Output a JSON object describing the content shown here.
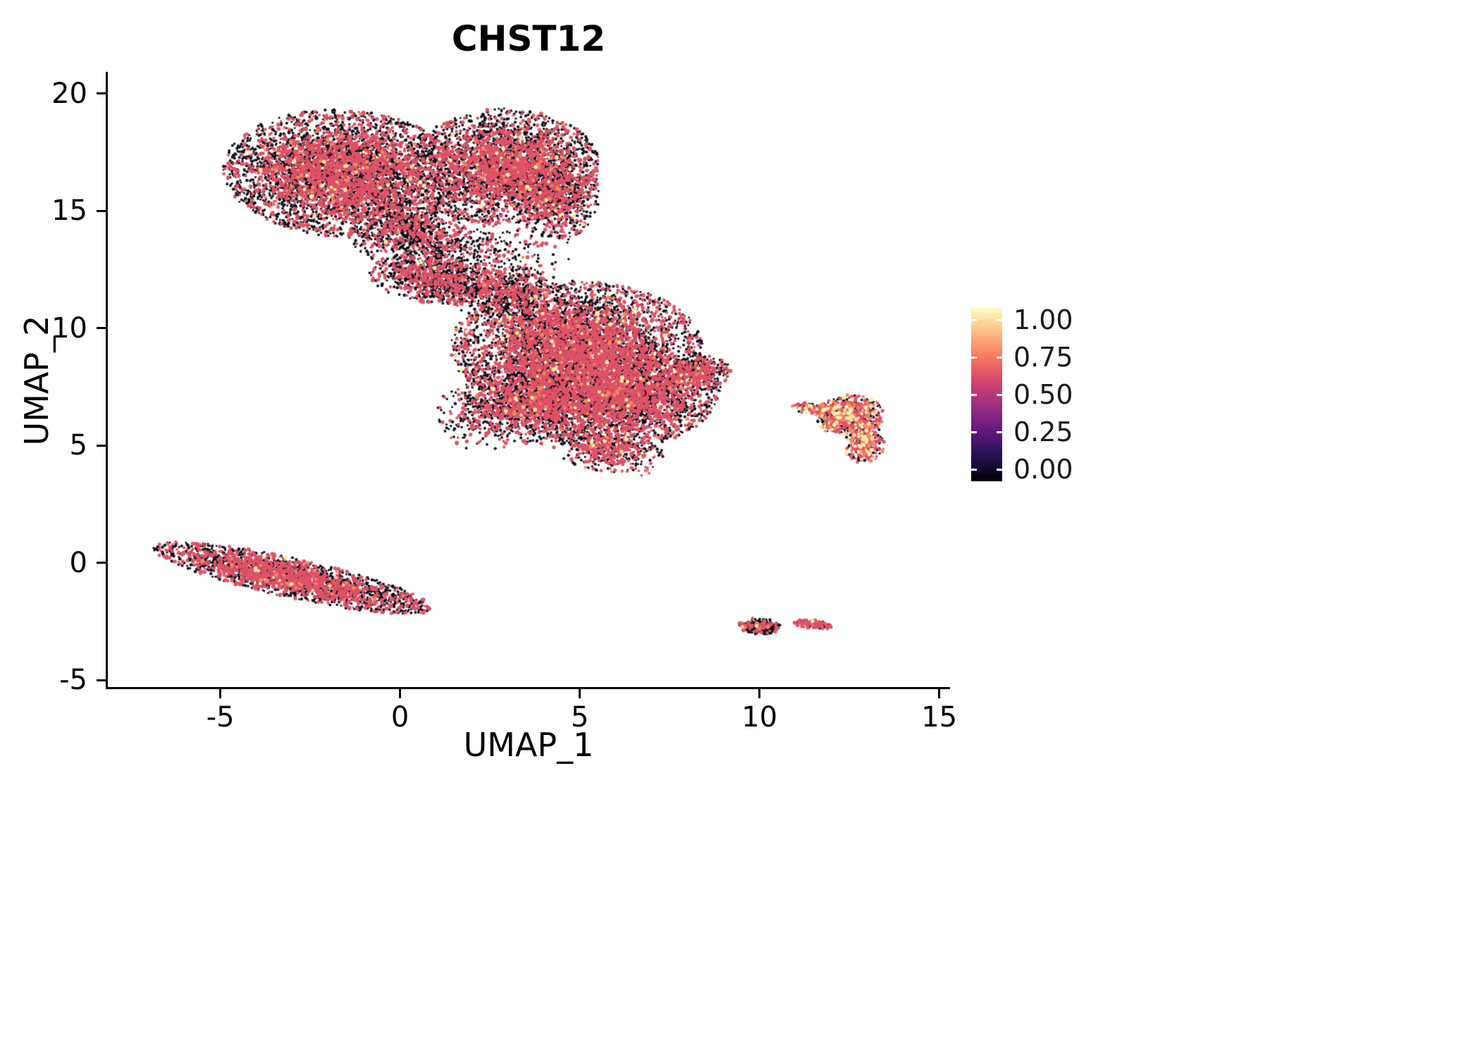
{
  "title": "CHST12",
  "axes": {
    "x": {
      "label": "UMAP_1",
      "ticks": [
        -5,
        0,
        5,
        10,
        15
      ]
    },
    "y": {
      "label": "UMAP_2",
      "ticks": [
        -5,
        0,
        5,
        10,
        15,
        20
      ]
    }
  },
  "legend": {
    "tick_labels": [
      "1.00",
      "0.75",
      "0.50",
      "0.25",
      "0.00"
    ],
    "colormap": "magma",
    "gradient_stops": [
      "#000004",
      "#231151",
      "#5f187f",
      "#982d80",
      "#d3436e",
      "#f8765c",
      "#febb81",
      "#fcfdbf"
    ]
  },
  "chart_data": {
    "type": "scatter",
    "title": "CHST12",
    "xlabel": "UMAP_1",
    "ylabel": "UMAP_2",
    "xlim": [
      -8.15,
      15.3
    ],
    "ylim": [
      -5.3,
      20.9
    ],
    "color_scale": {
      "min": 0.0,
      "max": 1.0,
      "palette": "magma",
      "tick_values": [
        1.0,
        0.75,
        0.5,
        0.25,
        0.0
      ]
    },
    "note": "UMAP feature plot of CHST12 expression; dense point cloud represented by cluster distributions. Each cluster: center (cx,cy) in UMAP units, spread (rx,ry), rotation in degrees, n points, color mix of expression levels (black=0, rose~0.6, orange~0.8, yellow~1.0).",
    "point_colors": {
      "black": "#0d0b16",
      "rose": "#df5266",
      "orange": "#f5875f",
      "yellow": "#fbe9a8"
    },
    "point_sizes": {
      "black": [
        1.4,
        2.3
      ],
      "rose": [
        1.7,
        2.9
      ],
      "orange": [
        1.8,
        2.9
      ],
      "yellow": [
        1.9,
        3.0
      ]
    },
    "draw_order": [
      "black",
      "rose",
      "orange",
      "yellow"
    ],
    "mixes": {
      "standard": {
        "black": 0.51,
        "rose": 0.465,
        "orange": 0.015,
        "yellow": 0.01
      },
      "central": {
        "black": 0.47,
        "rose": 0.505,
        "orange": 0.015,
        "yellow": 0.01
      },
      "sparse_dark": {
        "black": 0.63,
        "rose": 0.36,
        "orange": 0.006,
        "yellow": 0.004
      },
      "streak": {
        "black": 0.5,
        "rose": 0.485,
        "orange": 0.01,
        "yellow": 0.005
      },
      "island": {
        "black": 0.36,
        "rose": 0.42,
        "orange": 0.13,
        "yellow": 0.09
      },
      "dark_small": {
        "black": 0.72,
        "rose": 0.265,
        "orange": 0.01,
        "yellow": 0.005
      },
      "half": {
        "black": 0.45,
        "rose": 0.54,
        "orange": 0.005,
        "yellow": 0.005
      },
      "bright": {
        "black": 0.0,
        "rose": 0.6,
        "orange": 0.4,
        "yellow": 0.0
      }
    },
    "clusters": [
      {
        "name": "upper-left-lobe",
        "cx": -1.6,
        "cy": 16.6,
        "rx": 2.9,
        "ry": 2.35,
        "rot": -8,
        "n": 5200,
        "mix": "standard",
        "edge": 1.4
      },
      {
        "name": "upper-right-lobe",
        "cx": 2.9,
        "cy": 16.9,
        "rx": 2.3,
        "ry": 2.15,
        "rot": 5,
        "n": 3300,
        "mix": "standard",
        "edge": 1.2
      },
      {
        "name": "upper-right-edge",
        "cx": 4.35,
        "cy": 15.7,
        "rx": 1.05,
        "ry": 1.7,
        "rot": 0,
        "n": 900,
        "mix": "standard",
        "edge": 0.8
      },
      {
        "name": "upper-lower-fringe",
        "cx": 0.5,
        "cy": 14.0,
        "rx": 1.7,
        "ry": 1.35,
        "rot": -10,
        "n": 950,
        "mix": "sparse_dark",
        "edge": 0.2
      },
      {
        "name": "neck",
        "cx": 0.9,
        "cy": 12.15,
        "rx": 1.55,
        "ry": 0.95,
        "rot": -12,
        "n": 850,
        "mix": "sparse_dark",
        "edge": 0.2
      },
      {
        "name": "neck-drip",
        "cx": 2.4,
        "cy": 11.7,
        "rx": 1.25,
        "ry": 1.05,
        "rot": 0,
        "n": 420,
        "mix": "sparse_dark",
        "edge": 0
      },
      {
        "name": "bridge",
        "cx": 3.4,
        "cy": 11.4,
        "rx": 1.0,
        "ry": 1.0,
        "rot": 0,
        "n": 300,
        "mix": "sparse_dark",
        "edge": 0
      },
      {
        "name": "gap-scatter",
        "cx": 3.0,
        "cy": 13.2,
        "rx": 1.6,
        "ry": 1.3,
        "rot": 0,
        "n": 200,
        "mix": "sparse_dark",
        "edge": 0
      },
      {
        "name": "central-main",
        "cx": 4.9,
        "cy": 9.2,
        "rx": 3.05,
        "ry": 2.45,
        "rot": 0,
        "n": 5400,
        "mix": "central",
        "edge": 1.3
      },
      {
        "name": "central-lower-right",
        "cx": 6.3,
        "cy": 6.9,
        "rx": 2.35,
        "ry": 1.75,
        "rot": 20,
        "n": 2700,
        "mix": "central",
        "edge": 1.1
      },
      {
        "name": "central-lower-left",
        "cx": 3.7,
        "cy": 6.8,
        "rx": 1.75,
        "ry": 1.5,
        "rot": 0,
        "n": 1500,
        "mix": "central",
        "edge": 1.0
      },
      {
        "name": "central-left-fringe",
        "cx": 2.2,
        "cy": 6.2,
        "rx": 1.0,
        "ry": 1.3,
        "rot": 15,
        "n": 220,
        "mix": "sparse_dark",
        "edge": 0
      },
      {
        "name": "central-right-tip",
        "cx": 8.25,
        "cy": 8.1,
        "rx": 0.85,
        "ry": 0.65,
        "rot": 10,
        "n": 420,
        "mix": "standard",
        "edge": 0.5
      },
      {
        "name": "central-bottom-tip",
        "cx": 5.8,
        "cy": 4.8,
        "rx": 1.35,
        "ry": 0.8,
        "rot": -12,
        "n": 500,
        "mix": "central",
        "edge": 0.8
      },
      {
        "name": "central-stragglers",
        "cx": 6.8,
        "cy": 3.85,
        "rx": 0.18,
        "ry": 0.12,
        "rot": 0,
        "n": 5,
        "mix": "bright",
        "edge": 0
      },
      {
        "name": "lower-left-streak",
        "cx": -3.0,
        "cy": -0.65,
        "rx": 3.55,
        "ry": 0.72,
        "rot": -19,
        "n": 2700,
        "mix": "streak",
        "edge": 0.9
      },
      {
        "name": "right-island-top",
        "cx": 12.55,
        "cy": 6.3,
        "rx": 0.8,
        "ry": 0.75,
        "rot": 0,
        "n": 520,
        "mix": "island",
        "edge": 0.3
      },
      {
        "name": "right-island-bottom",
        "cx": 12.9,
        "cy": 5.1,
        "rx": 0.5,
        "ry": 0.75,
        "rot": 0,
        "n": 300,
        "mix": "island",
        "edge": 0.3
      },
      {
        "name": "right-island-wisp",
        "cx": 11.6,
        "cy": 6.55,
        "rx": 0.65,
        "ry": 0.22,
        "rot": -8,
        "n": 130,
        "mix": "island",
        "edge": 0
      },
      {
        "name": "right-island-mid",
        "cx": 12.05,
        "cy": 6.0,
        "rx": 0.4,
        "ry": 0.38,
        "rot": 0,
        "n": 140,
        "mix": "island",
        "edge": 0
      },
      {
        "name": "bottom-small-left",
        "cx": 10.0,
        "cy": -2.7,
        "rx": 0.52,
        "ry": 0.3,
        "rot": -6,
        "n": 280,
        "mix": "dark_small",
        "edge": 0.3
      },
      {
        "name": "bottom-small-right",
        "cx": 11.5,
        "cy": -2.62,
        "rx": 0.48,
        "ry": 0.16,
        "rot": -8,
        "n": 130,
        "mix": "half",
        "edge": 0
      }
    ]
  }
}
